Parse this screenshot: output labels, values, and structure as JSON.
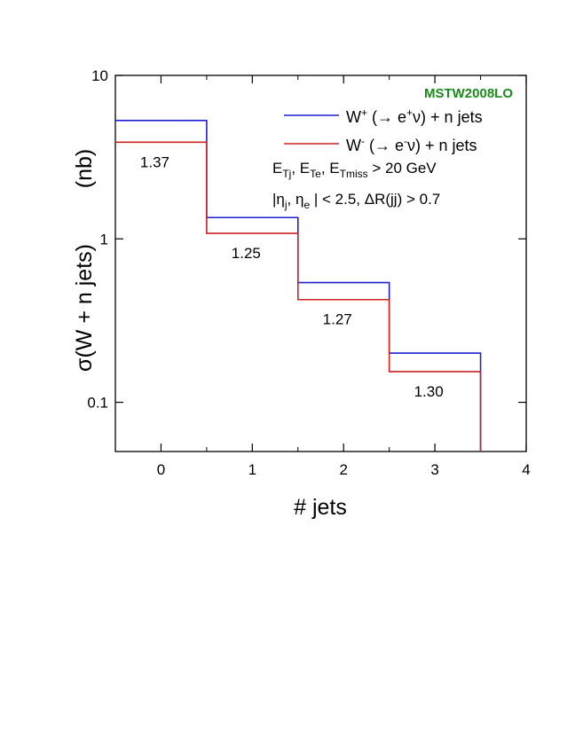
{
  "chart_data": {
    "type": "step",
    "xlabel": "# jets",
    "ylabel": "σ(W + n jets)",
    "ylabel_unit": "(nb)",
    "xlim": [
      -0.5,
      4
    ],
    "ylim": [
      0.05,
      10
    ],
    "yscale": "log",
    "x_ticks": [
      "0",
      "1",
      "2",
      "3",
      "4"
    ],
    "y_ticks": [
      "0.1",
      "1",
      "10"
    ],
    "pdf_label": "MSTW2008LO",
    "pdf_label_color": "#1a8a1a",
    "bin_edges": [
      -0.5,
      0.5,
      1.5,
      2.5,
      3.5
    ],
    "series": [
      {
        "name": "W⁺ (→ e⁺ν) + n jets",
        "color": "#1f1fd0",
        "values": [
          5.3,
          1.35,
          0.54,
          0.2
        ]
      },
      {
        "name": "W⁻ (→ e⁻ν) + n jets",
        "color": "#cc2222",
        "values": [
          3.9,
          1.08,
          0.425,
          0.154
        ]
      }
    ],
    "ratio_labels": [
      "1.37",
      "1.25",
      "1.27",
      "1.30"
    ],
    "cuts": [
      "E_Tj, E_Te, E_Tmiss > 20 GeV",
      "|η_j, η_e| < 2.5,   ΔR(jj) > 0.7"
    ]
  }
}
